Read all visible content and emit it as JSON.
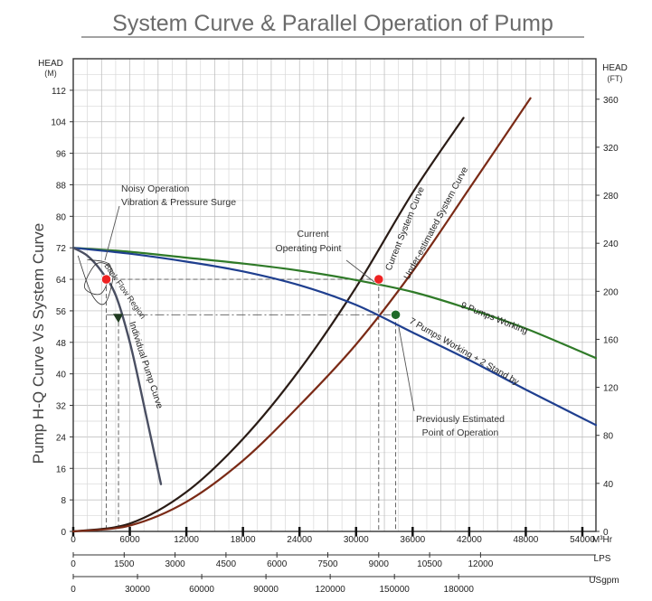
{
  "chart_data": {
    "type": "line",
    "title": "System Curve & Parallel Operation of Pump",
    "ylabel": "Pump H-Q Curve Vs System Curve",
    "y_left": {
      "label": "HEAD",
      "unit": "(M)",
      "ylim": [
        0,
        120
      ],
      "ticks": [
        "0",
        "8",
        "16",
        "24",
        "32",
        "40",
        "48",
        "56",
        "64",
        "72",
        "80",
        "88",
        "96",
        "104",
        "112"
      ]
    },
    "y_right": {
      "label": "HEAD",
      "unit": "(FT)",
      "ylim": [
        0,
        393.7
      ],
      "ticks": [
        "0",
        "40",
        "80",
        "120",
        "160",
        "200",
        "240",
        "280",
        "320",
        "360"
      ]
    },
    "x_m3hr": {
      "unit": "M³Hr",
      "xlim": [
        0,
        55440
      ],
      "ticks": [
        "0",
        "6000",
        "12000",
        "18000",
        "24000",
        "30000",
        "36000",
        "42000",
        "48000",
        "54000"
      ]
    },
    "x_lps": {
      "unit": "LPS",
      "ticks": [
        "0",
        "1500",
        "3000",
        "4500",
        "6000",
        "7500",
        "9000",
        "10500",
        "12000"
      ]
    },
    "x_usgpm": {
      "unit": "USgpm",
      "ticks": [
        "0",
        "30000",
        "60000",
        "90000",
        "120000",
        "150000",
        "180000"
      ]
    },
    "grid": true,
    "series": [
      {
        "name": "Current System Curve",
        "color": "#2a1c16",
        "x": [
          0,
          6000,
          12000,
          18000,
          24000,
          30000,
          36000,
          41400
        ],
        "y": [
          0,
          2,
          10,
          23.5,
          41,
          62,
          86,
          105
        ]
      },
      {
        "name": "Under-estimated System Curve",
        "color": "#7a2a16",
        "x": [
          0,
          6000,
          12000,
          18000,
          24000,
          30000,
          36000,
          42000,
          48500
        ],
        "y": [
          0,
          1.5,
          7.5,
          18,
          32,
          47.5,
          66,
          87,
          110
        ]
      },
      {
        "name": "9 Pumps Working",
        "color": "#2f7a28",
        "x": [
          0,
          6000,
          12000,
          18000,
          24000,
          30000,
          36000,
          42000,
          48000,
          55440
        ],
        "y": [
          72,
          71,
          69.5,
          68,
          66.2,
          63.8,
          60.8,
          56.5,
          51.5,
          44
        ]
      },
      {
        "name": "7 Pumps Working + 2 Stand by",
        "color": "#1f3f8f",
        "x": [
          0,
          6000,
          12000,
          18000,
          24000,
          30000,
          36000,
          42000,
          48000,
          55440
        ],
        "y": [
          72,
          70.5,
          68.5,
          66,
          62.5,
          57.5,
          50.5,
          43.5,
          36,
          27
        ]
      },
      {
        "name": "Individual Pump Curve",
        "color": "#4a4f62",
        "x": [
          0,
          1500,
          3000,
          4500,
          6000,
          7500,
          9300
        ],
        "y": [
          72,
          70,
          66,
          60,
          48,
          32,
          12
        ]
      }
    ],
    "points": [
      {
        "name": "current-operating-point",
        "x": 32400,
        "y": 64,
        "color": "#ee2222"
      },
      {
        "name": "previously-estimated-point",
        "x": 34200,
        "y": 55,
        "color": "#1f6a28"
      },
      {
        "name": "noisy-point",
        "x": 3500,
        "y": 64,
        "color": "#ee2222"
      }
    ],
    "annotations": {
      "noisy_line1": "Noisy Operation",
      "noisy_line2": "Vibration & Pressure Surge",
      "backflow": "Back Flow Region",
      "current_line1": "Current",
      "current_line2": "Operating Point",
      "previous_line1": "Previously Estimated",
      "previous_line2": "Point of Operation",
      "label_current_sys": "Current System Curve",
      "label_under_sys": "Under-estimated System Curve",
      "label_9pumps": "9 Pumps Working",
      "label_7pumps": "7 Pumps Working + 2 Stand by",
      "label_individual": "Individual Pump Curve"
    }
  }
}
